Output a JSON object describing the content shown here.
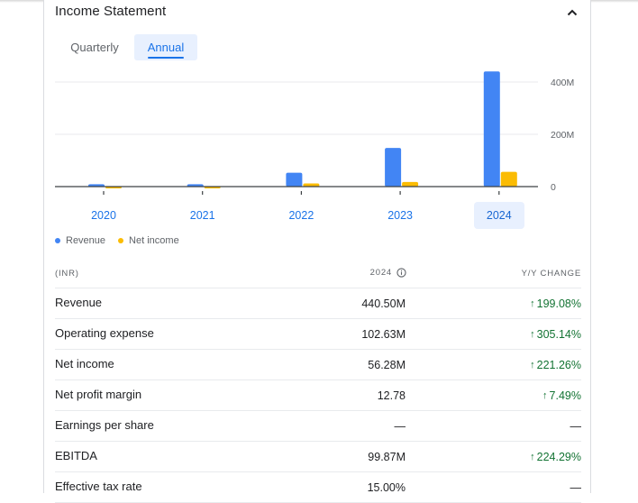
{
  "title": "Income Statement",
  "tabs": [
    {
      "label": "Quarterly",
      "active": false
    },
    {
      "label": "Annual",
      "active": true
    }
  ],
  "chart_data": {
    "type": "bar",
    "categories": [
      "2020",
      "2021",
      "2022",
      "2023",
      "2024"
    ],
    "selected_category": "2024",
    "series": [
      {
        "name": "Revenue",
        "color": "#4285f4",
        "values": [
          9,
          9,
          53,
          148,
          440.5
        ]
      },
      {
        "name": "Net income",
        "color": "#fbbc04",
        "values": [
          -5,
          -4,
          12,
          17.5,
          56.28
        ]
      }
    ],
    "y_ticks": [
      "400M",
      "200M",
      "0"
    ],
    "y_tick_values": [
      400,
      200,
      0
    ],
    "ylim": [
      -20,
      460
    ],
    "grid": true
  },
  "legend": [
    {
      "label": "Revenue",
      "color": "#4285f4"
    },
    {
      "label": "Net income",
      "color": "#fbbc04"
    }
  ],
  "table": {
    "headers": {
      "label": "(INR)",
      "year": "2024",
      "change": "Y/Y CHANGE"
    },
    "rows": [
      {
        "label": "Revenue",
        "value": "440.50M",
        "change": "199.08%",
        "direction": "up"
      },
      {
        "label": "Operating expense",
        "value": "102.63M",
        "change": "305.14%",
        "direction": "up"
      },
      {
        "label": "Net income",
        "value": "56.28M",
        "change": "221.26%",
        "direction": "up"
      },
      {
        "label": "Net profit margin",
        "value": "12.78",
        "change": "7.49%",
        "direction": "up"
      },
      {
        "label": "Earnings per share",
        "value": "—",
        "change": "—",
        "direction": "none"
      },
      {
        "label": "EBITDA",
        "value": "99.87M",
        "change": "224.29%",
        "direction": "up"
      },
      {
        "label": "Effective tax rate",
        "value": "15.00%",
        "change": "—",
        "direction": "none"
      }
    ]
  }
}
